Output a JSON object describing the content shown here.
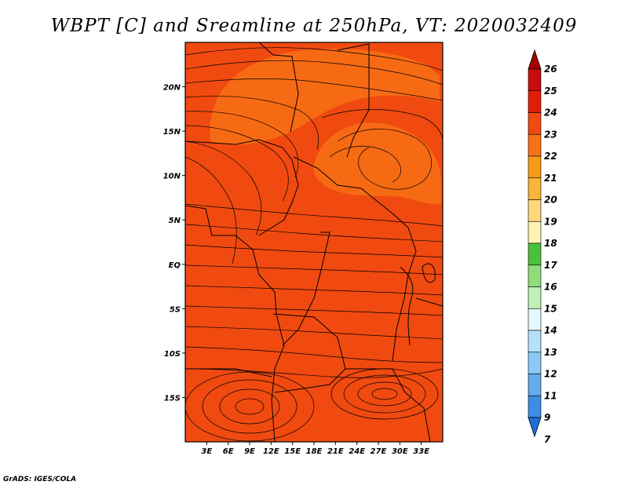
{
  "title": "WBPT [C] and Sreamline at 250hPa, VT: 2020032409",
  "credit": "GrADS: IGES/COLA",
  "map": {
    "lon_range": [
      0,
      36
    ],
    "lat_range": [
      -20,
      25
    ],
    "lon_ticks": [
      {
        "value": 3,
        "label": "3E"
      },
      {
        "value": 6,
        "label": "6E"
      },
      {
        "value": 9,
        "label": "9E"
      },
      {
        "value": 12,
        "label": "12E"
      },
      {
        "value": 15,
        "label": "15E"
      },
      {
        "value": 18,
        "label": "18E"
      },
      {
        "value": 21,
        "label": "21E"
      },
      {
        "value": 24,
        "label": "24E"
      },
      {
        "value": 27,
        "label": "27E"
      },
      {
        "value": 30,
        "label": "30E"
      },
      {
        "value": 33,
        "label": "33E"
      }
    ],
    "lat_ticks": [
      {
        "value": 20,
        "label": "20N"
      },
      {
        "value": 15,
        "label": "15N"
      },
      {
        "value": 10,
        "label": "10N"
      },
      {
        "value": 5,
        "label": "5N"
      },
      {
        "value": 0,
        "label": "EQ"
      },
      {
        "value": -5,
        "label": "5S"
      },
      {
        "value": -10,
        "label": "10S"
      },
      {
        "value": -15,
        "label": "15S"
      }
    ],
    "base_color": "#f04a10",
    "warm_patch_color": "#f76a14"
  },
  "colorbar": {
    "levels": [
      "26",
      "25",
      "24",
      "23",
      "22",
      "21",
      "20",
      "19",
      "18",
      "17",
      "16",
      "15",
      "14",
      "13",
      "12",
      "11",
      "9",
      "7"
    ],
    "colors": [
      "#a50000",
      "#c80d0d",
      "#e11e05",
      "#f04a10",
      "#f77216",
      "#fa9b16",
      "#fbb43a",
      "#fdd77a",
      "#fff2b3",
      "#49c23a",
      "#8fdc7a",
      "#bff0b5",
      "#e6f8ff",
      "#b4e0fa",
      "#8cc8f5",
      "#64acee",
      "#3c8ee4",
      "#1e6ed8"
    ]
  }
}
